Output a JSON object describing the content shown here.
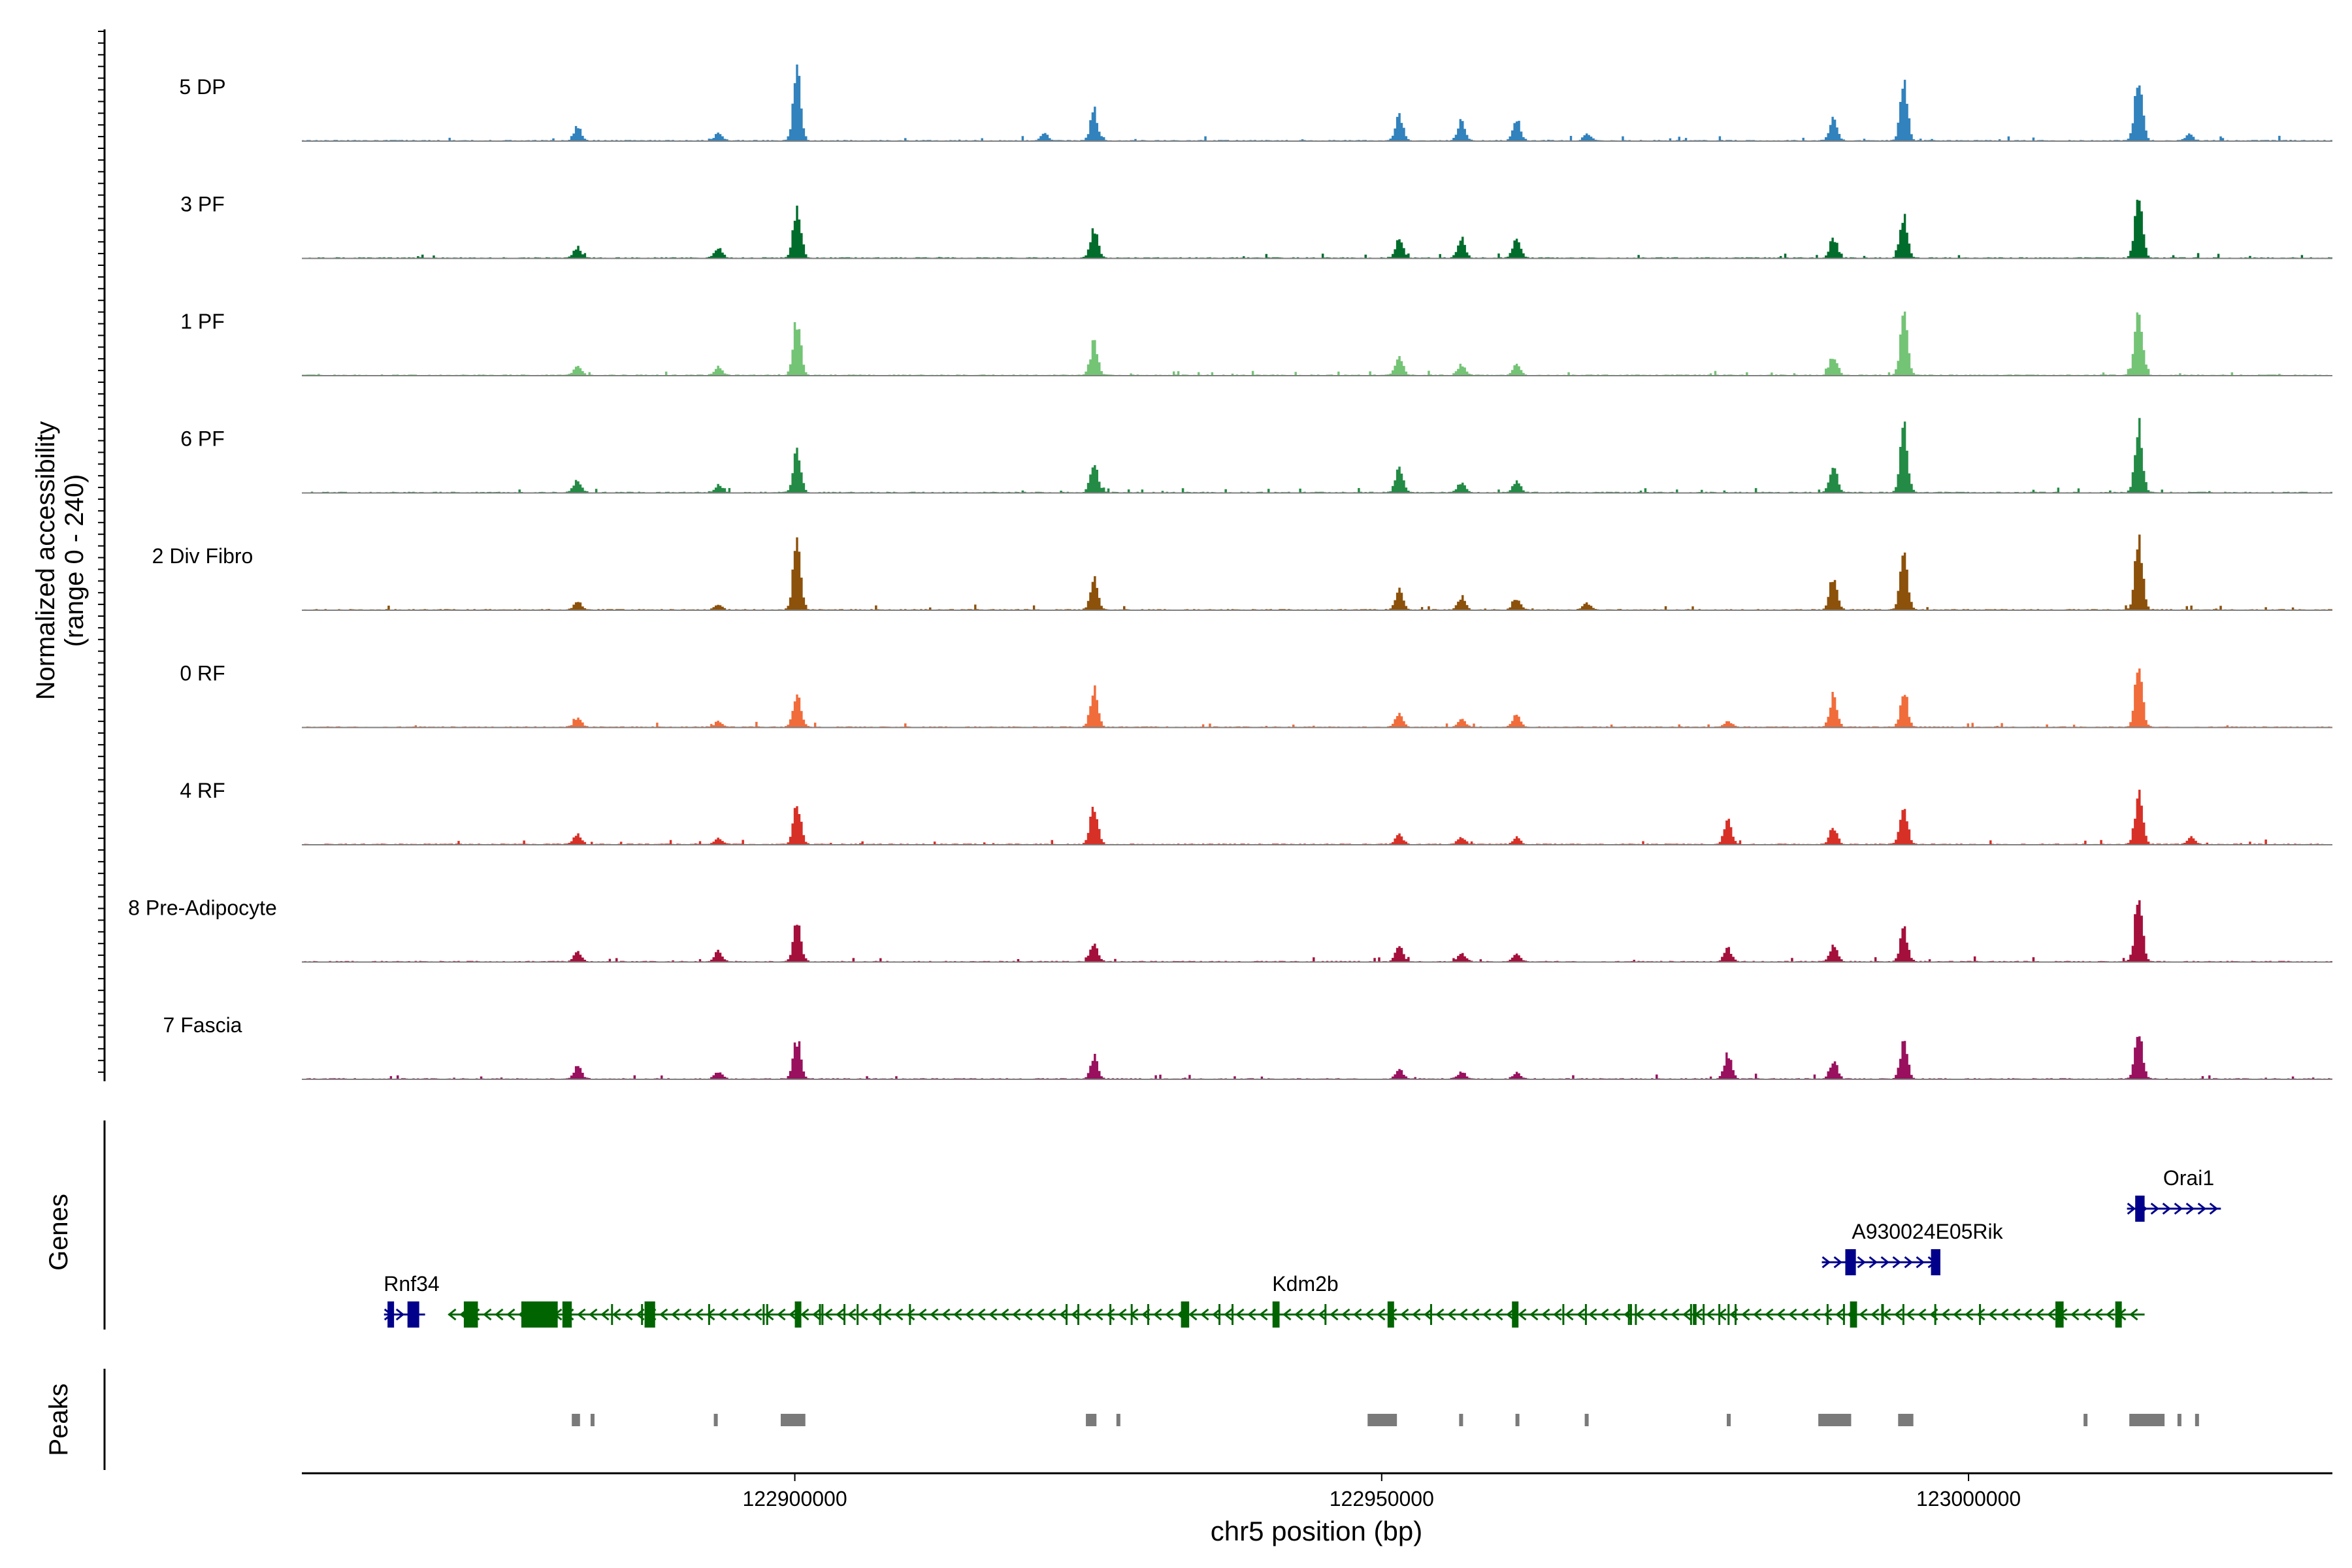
{
  "chart_data": {
    "type": "area",
    "title": "",
    "ylabel_line1": "Normalized accessibility",
    "ylabel_line2": "(range 0 - 240)",
    "xlabel": "chr5 position (bp)",
    "x_range": [
      122858000,
      123031000
    ],
    "y_range": [
      0,
      240
    ],
    "x_ticks": [
      {
        "value": 122900000,
        "label": "122900000"
      },
      {
        "value": 122950000,
        "label": "122950000"
      },
      {
        "value": 123000000,
        "label": "123000000"
      }
    ],
    "peak_positions": [
      122881500,
      122893500,
      122900200,
      122925500,
      122951500,
      122956800,
      122961500,
      122967500,
      122979500,
      122988500,
      122994500,
      123014500
    ],
    "series": [
      {
        "name": "5 DP",
        "color": "#3182bd",
        "peaks": [
          [
            122881500,
            0.2
          ],
          [
            122893500,
            0.1
          ],
          [
            122900200,
            1.0
          ],
          [
            122921300,
            0.1
          ],
          [
            122925500,
            0.42
          ],
          [
            122951500,
            0.35
          ],
          [
            122956800,
            0.28
          ],
          [
            122961500,
            0.3
          ],
          [
            122967500,
            0.1
          ],
          [
            122988500,
            0.35
          ],
          [
            122994500,
            0.8
          ],
          [
            123014500,
            0.95
          ],
          [
            123018800,
            0.1
          ]
        ]
      },
      {
        "name": "3 PF",
        "color": "#006d2c",
        "peaks": [
          [
            122881500,
            0.15
          ],
          [
            122893500,
            0.15
          ],
          [
            122900200,
            0.75
          ],
          [
            122925500,
            0.4
          ],
          [
            122951500,
            0.28
          ],
          [
            122956800,
            0.28
          ],
          [
            122961500,
            0.3
          ],
          [
            122988500,
            0.3
          ],
          [
            122994500,
            0.6
          ],
          [
            123014500,
            0.98
          ]
        ]
      },
      {
        "name": "1 PF",
        "color": "#74c476",
        "peaks": [
          [
            122881500,
            0.15
          ],
          [
            122893500,
            0.12
          ],
          [
            122900200,
            0.8
          ],
          [
            122925500,
            0.45
          ],
          [
            122951500,
            0.25
          ],
          [
            122956800,
            0.15
          ],
          [
            122961500,
            0.15
          ],
          [
            122988500,
            0.28
          ],
          [
            122994500,
            0.8
          ],
          [
            123014500,
            1.0
          ]
        ]
      },
      {
        "name": "6 PF",
        "color": "#238b45",
        "peaks": [
          [
            122881500,
            0.18
          ],
          [
            122893500,
            0.1
          ],
          [
            122900200,
            0.62
          ],
          [
            122925500,
            0.45
          ],
          [
            122951500,
            0.35
          ],
          [
            122956800,
            0.15
          ],
          [
            122961500,
            0.15
          ],
          [
            122988500,
            0.4
          ],
          [
            122994500,
            0.88
          ],
          [
            123014500,
            0.97
          ]
        ]
      },
      {
        "name": "2 Div Fibro",
        "color": "#8c510a",
        "peaks": [
          [
            122881500,
            0.12
          ],
          [
            122893500,
            0.08
          ],
          [
            122900200,
            0.97
          ],
          [
            122925500,
            0.45
          ],
          [
            122951500,
            0.28
          ],
          [
            122956800,
            0.18
          ],
          [
            122961500,
            0.15
          ],
          [
            122967500,
            0.1
          ],
          [
            122988500,
            0.45
          ],
          [
            122994500,
            0.75
          ],
          [
            123014500,
            1.0
          ]
        ]
      },
      {
        "name": "0 RF",
        "color": "#f16c3b",
        "peaks": [
          [
            122881500,
            0.12
          ],
          [
            122893500,
            0.08
          ],
          [
            122900200,
            0.55
          ],
          [
            122925500,
            0.55
          ],
          [
            122951500,
            0.18
          ],
          [
            122956800,
            0.12
          ],
          [
            122961500,
            0.18
          ],
          [
            122979500,
            0.08
          ],
          [
            122988500,
            0.45
          ],
          [
            122994500,
            0.45
          ],
          [
            123014500,
            0.9
          ]
        ]
      },
      {
        "name": "4 RF",
        "color": "#d73027",
        "peaks": [
          [
            122881500,
            0.15
          ],
          [
            122893500,
            0.08
          ],
          [
            122900200,
            0.55
          ],
          [
            122925500,
            0.55
          ],
          [
            122951500,
            0.15
          ],
          [
            122956800,
            0.1
          ],
          [
            122961500,
            0.1
          ],
          [
            122979500,
            0.35
          ],
          [
            122988500,
            0.25
          ],
          [
            122994500,
            0.55
          ],
          [
            123014500,
            0.75
          ],
          [
            123019000,
            0.1
          ]
        ]
      },
      {
        "name": "8 Pre-Adipocyte",
        "color": "#a50f3c",
        "peaks": [
          [
            122881500,
            0.15
          ],
          [
            122893500,
            0.15
          ],
          [
            122900200,
            0.6
          ],
          [
            122925500,
            0.28
          ],
          [
            122951500,
            0.2
          ],
          [
            122956800,
            0.12
          ],
          [
            122961500,
            0.1
          ],
          [
            122979500,
            0.2
          ],
          [
            122988500,
            0.22
          ],
          [
            122994500,
            0.45
          ],
          [
            123014500,
            1.0
          ]
        ]
      },
      {
        "name": "7 Fascia",
        "color": "#99105e",
        "peaks": [
          [
            122881500,
            0.18
          ],
          [
            122893500,
            0.1
          ],
          [
            122900200,
            0.55
          ],
          [
            122925500,
            0.3
          ],
          [
            122951500,
            0.15
          ],
          [
            122956800,
            0.1
          ],
          [
            122961500,
            0.08
          ],
          [
            122979500,
            0.35
          ],
          [
            122988500,
            0.28
          ],
          [
            122994500,
            0.5
          ],
          [
            123014500,
            0.65
          ]
        ]
      }
    ],
    "genes_track_label": "Genes",
    "genes": [
      {
        "name": "Rnf34",
        "color": "#00008b",
        "strand": "+",
        "start": 122865000,
        "end": 122868500,
        "exons": [
          [
            122865300,
            122865600
          ],
          [
            122867000,
            122868000
          ]
        ]
      },
      {
        "name": "Kdm2b",
        "color": "#006400",
        "strand": "-",
        "start": 122870500,
        "end": 123015000,
        "exons": [
          [
            122871800,
            122873000
          ],
          [
            122876700,
            122879800
          ],
          [
            122880200,
            122881000
          ],
          [
            122887200,
            122888100
          ],
          [
            122900000,
            122900300
          ],
          [
            122932900,
            122933600
          ],
          [
            122940700,
            122941300
          ],
          [
            122950500,
            122951000
          ],
          [
            122961100,
            122961500
          ],
          [
            122989900,
            122990500
          ],
          [
            123007400,
            123008100
          ],
          [
            123012500,
            123013000
          ]
        ]
      },
      {
        "name": "A930024E05Rik",
        "color": "#00008b",
        "strand": "+",
        "start": 122987500,
        "end": 122997500,
        "exons": [
          [
            122989500,
            122990400
          ],
          [
            122996800,
            122997600
          ]
        ]
      },
      {
        "name": "Orai1",
        "color": "#00008b",
        "strand": "+",
        "start": 123013500,
        "end": 123021500,
        "exons": [
          [
            123014200,
            123015000
          ]
        ]
      }
    ],
    "peaks_track_label": "Peaks",
    "peak_regions": [
      [
        122881000,
        122881700
      ],
      [
        122882600,
        122882900
      ],
      [
        122893100,
        122893400
      ],
      [
        122898800,
        122900900
      ],
      [
        122924800,
        122925700
      ],
      [
        122927400,
        122927600
      ],
      [
        122948800,
        122951300
      ],
      [
        122956600,
        122956900
      ],
      [
        122961400,
        122961700
      ],
      [
        122967300,
        122967600
      ],
      [
        122979400,
        122979700
      ],
      [
        122987200,
        122990000
      ],
      [
        122994000,
        122995300
      ],
      [
        123009800,
        123010000
      ],
      [
        123013700,
        123016700
      ],
      [
        123017800,
        123018100
      ],
      [
        123019300,
        123019600
      ]
    ]
  }
}
